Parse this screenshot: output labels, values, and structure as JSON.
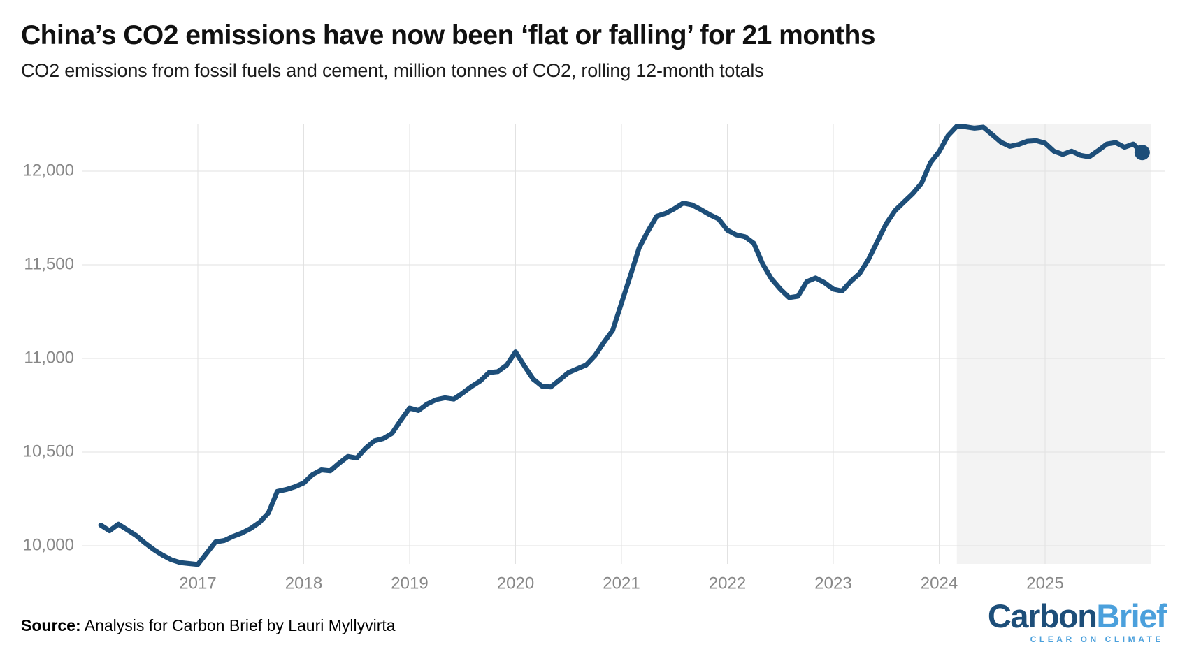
{
  "header": {
    "title": "China’s CO2 emissions have now been ‘flat or falling’ for 21 months",
    "subtitle": "CO2 emissions from fossil fuels and cement, million tonnes of CO2, rolling 12-month totals"
  },
  "source": {
    "label": "Source:",
    "text": " Analysis for Carbon Brief by Lauri Myllyvirta"
  },
  "logo": {
    "part1": "Carbon",
    "part2": "Brief",
    "tagline": "CLEAR ON CLIMATE"
  },
  "colors": {
    "line": "#1d4e79",
    "marker": "#1d4e79",
    "highlight_band": "#f3f3f3",
    "gridline": "#e2e2e2",
    "axis_text": "#888888",
    "logo_dark": "#1d4e79",
    "logo_light": "#4ba0dc"
  },
  "chart_data": {
    "type": "line",
    "title": "China’s CO2 emissions have now been ‘flat or falling’ for 21 months",
    "subtitle": "CO2 emissions from fossil fuels and cement, million tonnes of CO2, rolling 12-month totals",
    "unit": "million tonnes of CO2, rolling 12-month totals",
    "frequency": "monthly",
    "start_month": "2016-02",
    "end_month": "2025-12",
    "values": [
      10110,
      10080,
      10115,
      10085,
      10055,
      10015,
      9980,
      9950,
      9925,
      9910,
      9905,
      9900,
      9960,
      10020,
      10028,
      10050,
      10068,
      10092,
      10125,
      10175,
      10290,
      10300,
      10315,
      10335,
      10380,
      10405,
      10400,
      10440,
      10477,
      10468,
      10520,
      10560,
      10572,
      10600,
      10670,
      10735,
      10722,
      10757,
      10780,
      10790,
      10783,
      10815,
      10850,
      10880,
      10925,
      10930,
      10965,
      11035,
      10960,
      10890,
      10852,
      10848,
      10886,
      10925,
      10945,
      10965,
      11015,
      11085,
      11150,
      11295,
      11440,
      11590,
      11680,
      11760,
      11775,
      11800,
      11830,
      11820,
      11795,
      11768,
      11745,
      11685,
      11660,
      11650,
      11615,
      11505,
      11425,
      11370,
      11325,
      11332,
      11410,
      11430,
      11405,
      11370,
      11360,
      11412,
      11455,
      11530,
      11625,
      11720,
      11790,
      11835,
      11880,
      11935,
      12045,
      12105,
      12190,
      12240,
      12237,
      12230,
      12235,
      12195,
      12155,
      12133,
      12143,
      12160,
      12163,
      12150,
      12107,
      12090,
      12107,
      12085,
      12077,
      12110,
      12145,
      12153,
      12128,
      12145,
      12100
    ],
    "y_ticks": [
      {
        "value": 10000,
        "label": "10,000"
      },
      {
        "value": 10500,
        "label": "10,500"
      },
      {
        "value": 11000,
        "label": "11,000"
      },
      {
        "value": 11500,
        "label": "11,500"
      },
      {
        "value": 12000,
        "label": "12,000"
      }
    ],
    "x_ticks": [
      {
        "year": 2017,
        "label": "2017"
      },
      {
        "year": 2018,
        "label": "2018"
      },
      {
        "year": 2019,
        "label": "2019"
      },
      {
        "year": 2020,
        "label": "2020"
      },
      {
        "year": 2021,
        "label": "2021"
      },
      {
        "year": 2022,
        "label": "2022"
      },
      {
        "year": 2023,
        "label": "2023"
      },
      {
        "year": 2024,
        "label": "2024"
      },
      {
        "year": 2025,
        "label": "2025"
      },
      {
        "year": 2026,
        "label": ""
      }
    ],
    "ylim": [
      9900,
      12250
    ],
    "xlim_decimal_years": [
      2015.89,
      2026.14
    ],
    "grid": true,
    "legend_position": "none",
    "highlight_band": {
      "from": "2024-03",
      "to": "2026-01"
    },
    "last_point_marker": true
  }
}
